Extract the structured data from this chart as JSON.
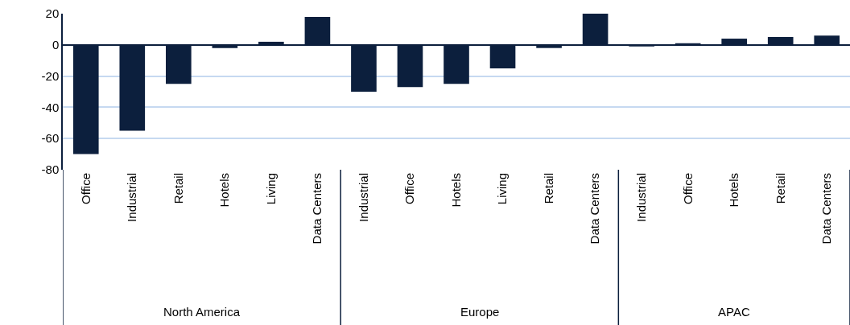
{
  "chart_data": {
    "type": "bar",
    "categories": [
      "Office",
      "Industrial",
      "Retail",
      "Hotels",
      "Living",
      "Data Centers",
      "Industrial",
      "Office",
      "Hotels",
      "Living",
      "Retail",
      "Data Centers",
      "Industrial",
      "Office",
      "Hotels",
      "Retail",
      "Data Centers"
    ],
    "series": [
      {
        "color": "#0c1f3d",
        "values": [
          -70,
          -55,
          -25,
          -2,
          2,
          18,
          null,
          null,
          null,
          null,
          null,
          null,
          null,
          null,
          null,
          null,
          null
        ]
      },
      {
        "color": "#0c1f3d",
        "values": [
          null,
          null,
          null,
          null,
          null,
          null,
          -30,
          -27,
          -25,
          -15,
          -2,
          20,
          null,
          null,
          null,
          null,
          null
        ]
      },
      {
        "color": "#0c1f3d",
        "values": [
          null,
          null,
          null,
          null,
          null,
          null,
          null,
          null,
          null,
          null,
          null,
          null,
          -1,
          1,
          4,
          5,
          6
        ]
      }
    ],
    "annotations": [
      "North America",
      "Europe",
      "APAC"
    ],
    "ylim": [
      -80,
      20
    ],
    "yticks": [
      -80,
      -60,
      -40,
      -20,
      0,
      20
    ],
    "grid": "y",
    "legend": false
  }
}
